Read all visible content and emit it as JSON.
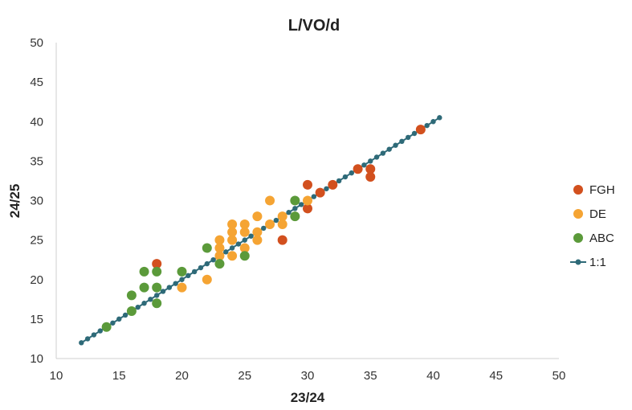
{
  "chart_data": {
    "type": "scatter",
    "title": "L/VO/d",
    "xlabel": "23/24",
    "ylabel": "24/25",
    "xlim": [
      10,
      50
    ],
    "ylim": [
      10,
      50
    ],
    "x_ticks": [
      "10",
      "15",
      "20",
      "25",
      "30",
      "35",
      "40",
      "45",
      "50"
    ],
    "y_ticks": [
      "10",
      "15",
      "20",
      "25",
      "30",
      "35",
      "40",
      "45",
      "50"
    ],
    "grid": false,
    "legend_position": "right",
    "series": [
      {
        "name": "FGH",
        "color": "#d2501e",
        "marker": "circle",
        "points": [
          [
            18,
            22
          ],
          [
            28,
            25
          ],
          [
            30,
            32
          ],
          [
            30,
            29
          ],
          [
            31,
            31
          ],
          [
            32,
            32
          ],
          [
            34,
            34
          ],
          [
            35,
            34
          ],
          [
            35,
            33
          ],
          [
            39,
            39
          ]
        ]
      },
      {
        "name": "DE",
        "color": "#f5a433",
        "marker": "circle",
        "points": [
          [
            20,
            19
          ],
          [
            22,
            20
          ],
          [
            23,
            25
          ],
          [
            23,
            24
          ],
          [
            23,
            23
          ],
          [
            24,
            27
          ],
          [
            24,
            26
          ],
          [
            24,
            25
          ],
          [
            24,
            23
          ],
          [
            25,
            27
          ],
          [
            25,
            26
          ],
          [
            25,
            24
          ],
          [
            26,
            28
          ],
          [
            26,
            26
          ],
          [
            26,
            25
          ],
          [
            27,
            30
          ],
          [
            27,
            27
          ],
          [
            28,
            28
          ],
          [
            28,
            27
          ],
          [
            30,
            30
          ]
        ]
      },
      {
        "name": "ABC",
        "color": "#5b9a3a",
        "marker": "circle",
        "points": [
          [
            14,
            14
          ],
          [
            16,
            18
          ],
          [
            16,
            16
          ],
          [
            17,
            21
          ],
          [
            17,
            19
          ],
          [
            18,
            21
          ],
          [
            18,
            19
          ],
          [
            18,
            17
          ],
          [
            20,
            21
          ],
          [
            22,
            24
          ],
          [
            23,
            22
          ],
          [
            25,
            23
          ],
          [
            29,
            30
          ],
          [
            29,
            28
          ]
        ]
      },
      {
        "name": "1:1",
        "color": "#2e6a78",
        "marker": "line-dots",
        "x_range": [
          12,
          40.5
        ],
        "step": 0.5
      }
    ]
  }
}
